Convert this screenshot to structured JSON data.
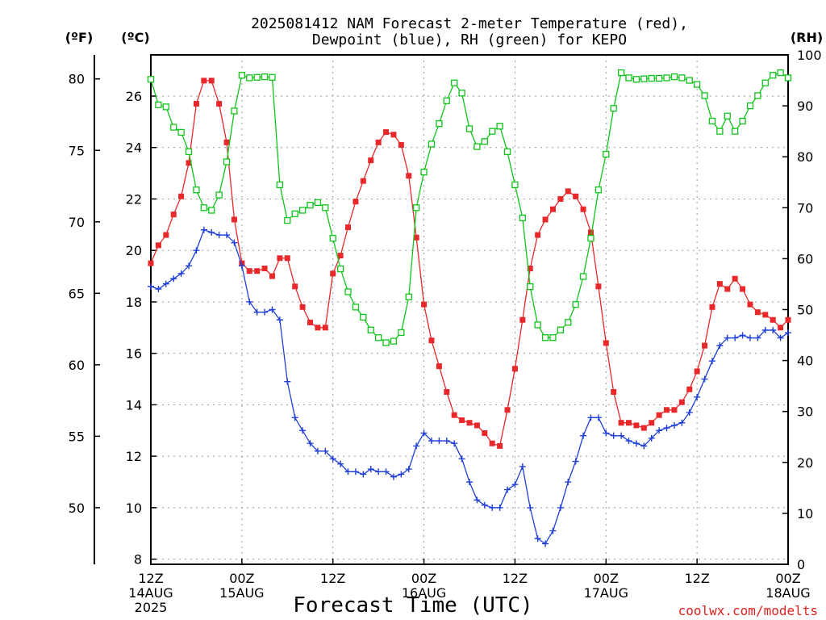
{
  "chart_data": {
    "type": "line",
    "title_line1": "2025081412 NAM Forecast 2-meter Temperature (red),",
    "title_line2": "Dewpoint (blue), RH (green) for KEPO",
    "xlabel": "Forecast Time (UTC)",
    "credit": "coolwx.com/modelts",
    "unit_labels": {
      "fahrenheit": "(ºF)",
      "celsius": "(ºC)",
      "rh": "(RH)"
    },
    "fahrenheit_ticks": [
      "80",
      "75",
      "70",
      "65",
      "60",
      "55",
      "50"
    ],
    "celsius_ticks": [
      "26",
      "24",
      "22",
      "20",
      "18",
      "16",
      "14",
      "12",
      "10",
      "8"
    ],
    "rh_ticks": [
      "100",
      "90",
      "80",
      "70",
      "60",
      "50",
      "40",
      "30",
      "20",
      "10",
      "0"
    ],
    "x_ticks": [
      {
        "hour": 0,
        "line1": "12Z",
        "line2": "14AUG",
        "line3": "2025"
      },
      {
        "hour": 12,
        "line1": "00Z",
        "line2": "15AUG",
        "line3": ""
      },
      {
        "hour": 24,
        "line1": "12Z",
        "line2": "",
        "line3": ""
      },
      {
        "hour": 36,
        "line1": "00Z",
        "line2": "16AUG",
        "line3": ""
      },
      {
        "hour": 48,
        "line1": "12Z",
        "line2": "",
        "line3": ""
      },
      {
        "hour": 60,
        "line1": "00Z",
        "line2": "17AUG",
        "line3": ""
      },
      {
        "hour": 72,
        "line1": "12Z",
        "line2": "",
        "line3": ""
      },
      {
        "hour": 84,
        "line1": "00Z",
        "line2": "18AUG",
        "line3": ""
      }
    ],
    "x_range_hours": [
      0,
      84
    ],
    "temp_c_range": [
      7.8,
      27.6
    ],
    "rh_range": [
      0,
      100
    ],
    "grid": true,
    "colors": {
      "temperature": "#e8282a",
      "dewpoint": "#1f3fd8",
      "rh": "#10c41a",
      "grid": "#9a9a9a"
    },
    "series": [
      {
        "name": "Temperature",
        "units": "°C",
        "marker": "filled-square",
        "values": [
          19.5,
          20.2,
          20.6,
          21.4,
          22.1,
          23.4,
          25.7,
          26.6,
          26.6,
          25.7,
          24.2,
          21.2,
          19.5,
          19.2,
          19.2,
          19.3,
          19.0,
          19.7,
          19.7,
          18.6,
          17.8,
          17.2,
          17.0,
          17.0,
          19.1,
          19.8,
          20.9,
          21.9,
          22.7,
          23.5,
          24.2,
          24.6,
          24.5,
          24.1,
          22.9,
          20.5,
          17.9,
          16.5,
          15.5,
          14.5,
          13.6,
          13.4,
          13.3,
          13.2,
          12.9,
          12.5,
          12.4,
          13.8,
          15.4,
          17.3,
          19.3,
          20.6,
          21.2,
          21.6,
          22.0,
          22.3,
          22.1,
          21.6,
          20.7,
          18.6,
          16.4,
          14.5,
          13.3,
          13.3,
          13.2,
          13.1,
          13.3,
          13.6,
          13.8,
          13.8,
          14.1,
          14.6,
          15.3,
          16.3,
          17.8,
          18.7,
          18.5,
          18.9,
          18.5,
          17.9,
          17.6,
          17.5,
          17.3,
          17.0,
          17.3
        ]
      },
      {
        "name": "Dewpoint",
        "units": "°C",
        "marker": "plus",
        "values": [
          18.6,
          18.5,
          18.7,
          18.9,
          19.1,
          19.4,
          20.0,
          20.8,
          20.7,
          20.6,
          20.6,
          20.3,
          19.4,
          18.0,
          17.6,
          17.6,
          17.7,
          17.3,
          14.9,
          13.5,
          13.0,
          12.5,
          12.2,
          12.2,
          11.9,
          11.7,
          11.4,
          11.4,
          11.3,
          11.5,
          11.4,
          11.4,
          11.2,
          11.3,
          11.5,
          12.4,
          12.9,
          12.6,
          12.6,
          12.6,
          12.5,
          11.9,
          11.0,
          10.3,
          10.1,
          10.0,
          10.0,
          10.7,
          10.9,
          11.6,
          10.0,
          8.8,
          8.6,
          9.1,
          10.0,
          11.0,
          11.8,
          12.8,
          13.5,
          13.5,
          12.9,
          12.8,
          12.8,
          12.6,
          12.5,
          12.4,
          12.7,
          13.0,
          13.1,
          13.2,
          13.3,
          13.7,
          14.3,
          15.0,
          15.7,
          16.3,
          16.6,
          16.6,
          16.7,
          16.6,
          16.6,
          16.9,
          16.9,
          16.6,
          16.8
        ]
      },
      {
        "name": "RH",
        "units": "%",
        "marker": "open-square",
        "values": [
          95.2,
          90.2,
          89.8,
          85.8,
          84.8,
          81.0,
          73.5,
          70.0,
          69.5,
          72.5,
          79.0,
          89.0,
          96.0,
          95.5,
          95.6,
          95.7,
          95.6,
          74.5,
          67.5,
          68.8,
          69.5,
          70.5,
          71.0,
          70.0,
          64.0,
          58.0,
          53.5,
          50.5,
          48.5,
          46.0,
          44.5,
          43.5,
          43.8,
          45.5,
          52.5,
          70.0,
          77.0,
          82.5,
          86.5,
          91.0,
          94.5,
          92.5,
          85.5,
          82.0,
          83.0,
          85.0,
          86.0,
          81.0,
          74.5,
          68.0,
          54.5,
          47.0,
          44.5,
          44.5,
          46.0,
          47.5,
          51.0,
          56.5,
          64.0,
          73.5,
          80.5,
          89.5,
          96.5,
          95.5,
          95.2,
          95.3,
          95.4,
          95.4,
          95.5,
          95.7,
          95.5,
          95.0,
          94.2,
          92.0,
          87.0,
          85.0,
          88.0,
          85.0,
          87.0,
          90.0,
          92.0,
          94.5,
          96.0,
          96.5,
          95.5
        ]
      }
    ]
  }
}
